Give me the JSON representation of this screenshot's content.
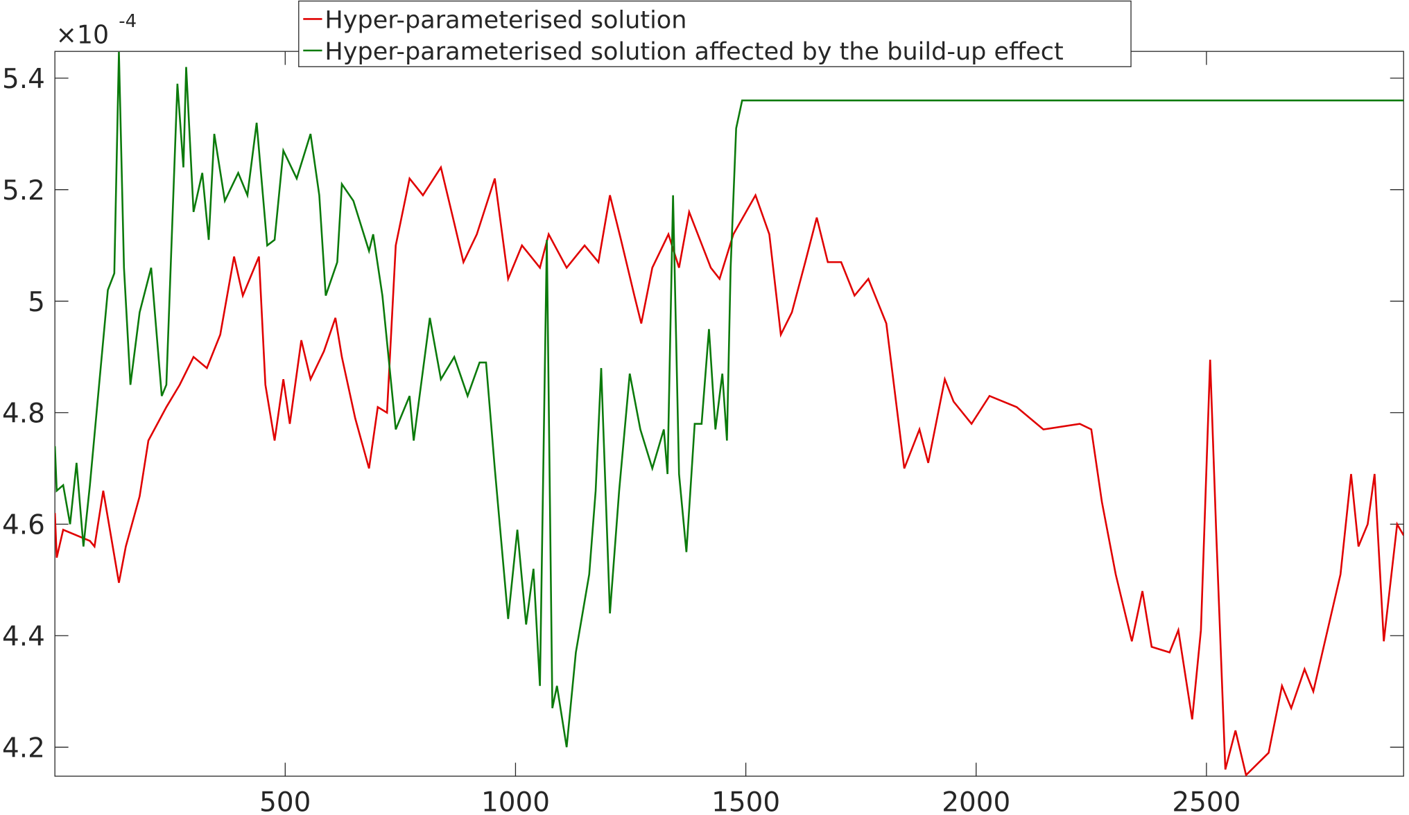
{
  "chart_data": {
    "type": "line",
    "y_multiplier": {
      "base": "×10",
      "exponent": "-4"
    },
    "xlim": [
      0,
      2928
    ],
    "ylim": [
      4.148,
      5.448
    ],
    "xticks": [
      500,
      1000,
      1500,
      2000,
      2500
    ],
    "yticks": [
      4.2,
      4.4,
      4.6,
      4.8,
      5,
      5.2,
      5.4
    ],
    "legend": "top-center",
    "series": [
      {
        "name": "Hyper-parameterised solution",
        "color": "#e00000",
        "x": [
          0,
          4,
          18,
          76,
          86,
          105,
          139,
          154,
          184,
          203,
          242,
          271,
          301,
          330,
          359,
          389,
          408,
          443,
          457,
          477,
          496,
          510,
          535,
          555,
          584,
          609,
          623,
          652,
          682,
          701,
          721,
          740,
          770,
          799,
          838,
          867,
          887,
          916,
          955,
          984,
          1014,
          1053,
          1072,
          1111,
          1150,
          1180,
          1205,
          1229,
          1258,
          1273,
          1297,
          1332,
          1355,
          1377,
          1424,
          1443,
          1473,
          1521,
          1551,
          1576,
          1600,
          1629,
          1654,
          1678,
          1707,
          1736,
          1766,
          1805,
          1844,
          1877,
          1896,
          1932,
          1951,
          1990,
          2029,
          2088,
          2146,
          2225,
          2250,
          2273,
          2303,
          2338,
          2361,
          2381,
          2420,
          2439,
          2469,
          2488,
          2508,
          2521,
          2541,
          2563,
          2586,
          2635,
          2664,
          2684,
          2713,
          2732,
          2791,
          2814,
          2830,
          2850,
          2865,
          2885,
          2914,
          2928
        ],
        "values": [
          4.62,
          4.54,
          4.59,
          4.57,
          4.56,
          4.66,
          4.495,
          4.56,
          4.65,
          4.75,
          4.81,
          4.85,
          4.9,
          4.88,
          4.94,
          5.08,
          5.01,
          5.08,
          4.85,
          4.75,
          4.86,
          4.78,
          4.93,
          4.86,
          4.91,
          4.97,
          4.9,
          4.79,
          4.7,
          4.81,
          4.8,
          5.1,
          5.22,
          5.19,
          5.24,
          5.14,
          5.07,
          5.12,
          5.22,
          5.04,
          5.1,
          5.06,
          5.12,
          5.06,
          5.1,
          5.07,
          5.19,
          5.11,
          5.01,
          4.96,
          5.06,
          5.12,
          5.06,
          5.16,
          5.06,
          5.04,
          5.12,
          5.19,
          5.12,
          4.94,
          4.98,
          5.07,
          5.15,
          5.07,
          5.07,
          5.01,
          5.04,
          4.96,
          4.7,
          4.77,
          4.71,
          4.86,
          4.82,
          4.78,
          4.83,
          4.81,
          4.77,
          4.78,
          4.77,
          4.64,
          4.51,
          4.39,
          4.48,
          4.38,
          4.37,
          4.41,
          4.25,
          4.41,
          4.895,
          4.59,
          4.16,
          4.23,
          4.15,
          4.19,
          4.31,
          4.27,
          4.34,
          4.3,
          4.51,
          4.69,
          4.56,
          4.6,
          4.69,
          4.39,
          4.6,
          4.58
        ]
      },
      {
        "name": "Hyper-parameterised solution affected by the build-up effect",
        "color": "#0b7a0b",
        "x": [
          0,
          4,
          18,
          33,
          47,
          62,
          76,
          96,
          115,
          129,
          139,
          150,
          164,
          184,
          209,
          232,
          242,
          266,
          279,
          285,
          301,
          320,
          334,
          346,
          369,
          398,
          418,
          438,
          461,
          477,
          496,
          525,
          555,
          574,
          588,
          613,
          623,
          648,
          682,
          691,
          711,
          740,
          770,
          779,
          814,
          838,
          867,
          896,
          922,
          936,
          955,
          984,
          1004,
          1023,
          1039,
          1053,
          1068,
          1080,
          1090,
          1111,
          1131,
          1160,
          1174,
          1186,
          1205,
          1225,
          1248,
          1271,
          1297,
          1322,
          1330,
          1342,
          1355,
          1371,
          1389,
          1404,
          1420,
          1434,
          1449,
          1459,
          1467,
          1479,
          1492,
          2928
        ],
        "values": [
          4.74,
          4.66,
          4.67,
          4.6,
          4.71,
          4.56,
          4.67,
          4.85,
          5.02,
          5.05,
          5.447,
          5.06,
          4.85,
          4.98,
          5.06,
          4.83,
          4.85,
          5.39,
          5.24,
          5.42,
          5.16,
          5.23,
          5.11,
          5.3,
          5.18,
          5.23,
          5.19,
          5.32,
          5.1,
          5.11,
          5.27,
          5.22,
          5.3,
          5.19,
          5.01,
          5.07,
          5.21,
          5.18,
          5.09,
          5.12,
          5.01,
          4.77,
          4.83,
          4.75,
          4.97,
          4.86,
          4.9,
          4.83,
          4.89,
          4.89,
          4.7,
          4.43,
          4.59,
          4.42,
          4.52,
          4.31,
          5.11,
          4.27,
          4.31,
          4.2,
          4.37,
          4.51,
          4.66,
          4.88,
          4.44,
          4.66,
          4.87,
          4.77,
          4.7,
          4.77,
          4.69,
          5.19,
          4.69,
          4.55,
          4.78,
          4.78,
          4.95,
          4.77,
          4.87,
          4.75,
          5.06,
          5.31,
          5.36,
          5.36
        ]
      }
    ]
  }
}
